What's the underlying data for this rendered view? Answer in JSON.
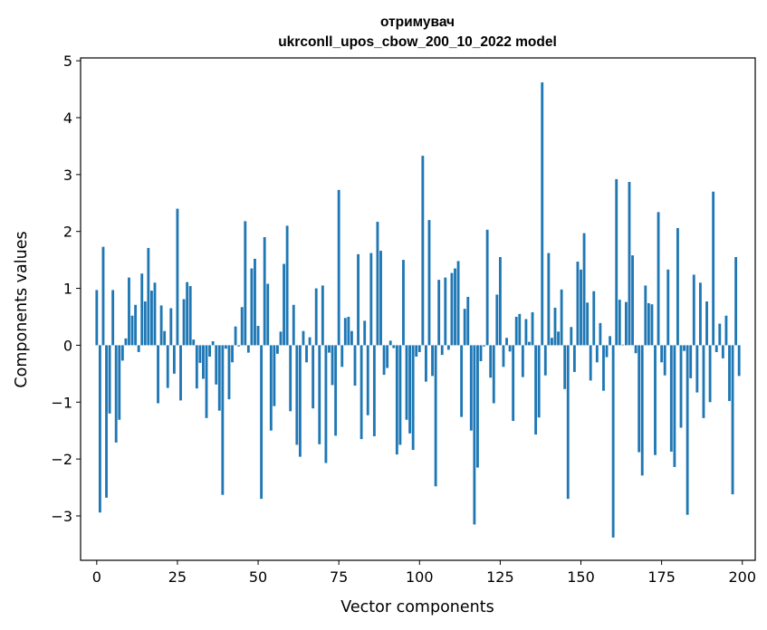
{
  "chart_data": {
    "type": "bar",
    "title": "отримувач",
    "subtitle": "ukrconll_upos_cbow_200_10_2022 model",
    "xlabel": "Vector components",
    "ylabel": "Components values",
    "xlim": [
      -5,
      204
    ],
    "ylim": [
      -3.78,
      5.05
    ],
    "xticks": [
      0,
      25,
      50,
      75,
      100,
      125,
      150,
      175,
      200
    ],
    "yticks": [
      -3,
      -2,
      -1,
      0,
      1,
      2,
      3,
      4,
      5
    ],
    "ytick_labels": [
      "−3",
      "−2",
      "−1",
      "0",
      "1",
      "2",
      "3",
      "4",
      "5"
    ],
    "bar_color": "#1f77b4",
    "grid": false,
    "x": [
      0,
      1,
      2,
      3,
      4,
      5,
      6,
      7,
      8,
      9,
      10,
      11,
      12,
      13,
      14,
      15,
      16,
      17,
      18,
      19,
      20,
      21,
      22,
      23,
      24,
      25,
      26,
      27,
      28,
      29,
      30,
      31,
      32,
      33,
      34,
      35,
      36,
      37,
      38,
      39,
      40,
      41,
      42,
      43,
      44,
      45,
      46,
      47,
      48,
      49,
      50,
      51,
      52,
      53,
      54,
      55,
      56,
      57,
      58,
      59,
      60,
      61,
      62,
      63,
      64,
      65,
      66,
      67,
      68,
      69,
      70,
      71,
      72,
      73,
      74,
      75,
      76,
      77,
      78,
      79,
      80,
      81,
      82,
      83,
      84,
      85,
      86,
      87,
      88,
      89,
      90,
      91,
      92,
      93,
      94,
      95,
      96,
      97,
      98,
      99,
      100,
      101,
      102,
      103,
      104,
      105,
      106,
      107,
      108,
      109,
      110,
      111,
      112,
      113,
      114,
      115,
      116,
      117,
      118,
      119,
      120,
      121,
      122,
      123,
      124,
      125,
      126,
      127,
      128,
      129,
      130,
      131,
      132,
      133,
      134,
      135,
      136,
      137,
      138,
      139,
      140,
      141,
      142,
      143,
      144,
      145,
      146,
      147,
      148,
      149,
      150,
      151,
      152,
      153,
      154,
      155,
      156,
      157,
      158,
      159,
      160,
      161,
      162,
      163,
      164,
      165,
      166,
      167,
      168,
      169,
      170,
      171,
      172,
      173,
      174,
      175,
      176,
      177,
      178,
      179,
      180,
      181,
      182,
      183,
      184,
      185,
      186,
      187,
      188,
      189,
      190,
      191,
      192,
      193,
      194,
      195,
      196,
      197,
      198,
      199
    ],
    "values": [
      0.97,
      -2.94,
      1.73,
      -2.68,
      -1.2,
      0.97,
      -1.71,
      -1.31,
      -0.27,
      0.12,
      1.19,
      0.52,
      0.71,
      -0.12,
      1.26,
      0.77,
      1.71,
      0.96,
      1.1,
      -1.02,
      0.7,
      0.25,
      -0.75,
      0.65,
      -0.5,
      2.4,
      -0.97,
      0.81,
      1.11,
      1.04,
      0.1,
      -0.76,
      -0.31,
      -0.59,
      -1.28,
      -0.2,
      0.07,
      -0.69,
      -1.15,
      -2.63,
      -0.06,
      -0.95,
      -0.3,
      0.33,
      -0.02,
      0.67,
      2.18,
      -0.13,
      1.35,
      1.52,
      0.34,
      -2.7,
      1.9,
      1.08,
      -1.5,
      -1.07,
      -0.15,
      0.24,
      1.43,
      2.1,
      -1.16,
      0.71,
      -1.75,
      -1.96,
      0.25,
      -0.3,
      0.14,
      -1.11,
      1.0,
      -1.74,
      1.05,
      -2.07,
      -0.13,
      -0.7,
      -1.59,
      2.73,
      -0.38,
      0.48,
      0.5,
      0.25,
      -0.71,
      1.6,
      -1.65,
      0.43,
      -1.23,
      1.62,
      -1.6,
      2.17,
      1.66,
      -0.52,
      -0.4,
      0.08,
      -0.05,
      -1.92,
      -1.75,
      1.5,
      -1.31,
      -1.55,
      -1.84,
      -0.2,
      -0.12,
      3.33,
      -0.64,
      2.2,
      -0.54,
      -2.48,
      1.15,
      -0.17,
      1.19,
      -0.08,
      1.27,
      1.35,
      1.48,
      -1.26,
      0.64,
      0.85,
      -1.5,
      -3.15,
      -2.15,
      -0.28,
      -0.02,
      2.03,
      -0.57,
      -1.02,
      0.89,
      1.55,
      -0.38,
      0.13,
      -0.11,
      -1.33,
      0.5,
      0.55,
      -0.56,
      0.46,
      0.06,
      0.58,
      -1.57,
      -1.27,
      4.62,
      -0.53,
      1.62,
      0.13,
      0.66,
      0.24,
      0.98,
      -0.77,
      -2.7,
      0.32,
      -0.47,
      1.47,
      1.33,
      1.97,
      0.75,
      -0.62,
      0.95,
      -0.3,
      0.39,
      -0.8,
      -0.21,
      0.16,
      -3.38,
      2.92,
      0.8,
      0.01,
      0.76,
      2.87,
      1.58,
      -0.14,
      -1.88,
      -2.29,
      1.05,
      0.74,
      0.72,
      -1.93,
      2.34,
      -0.3,
      -0.53,
      1.33,
      -1.87,
      -2.14,
      2.06,
      -1.45,
      -0.1,
      -2.98,
      -0.58,
      1.24,
      -0.83,
      1.1,
      -1.28,
      0.77,
      -1.0,
      2.7,
      -0.12,
      0.38,
      -0.23,
      0.52,
      -0.98,
      -2.62,
      1.55,
      -0.54
    ]
  }
}
